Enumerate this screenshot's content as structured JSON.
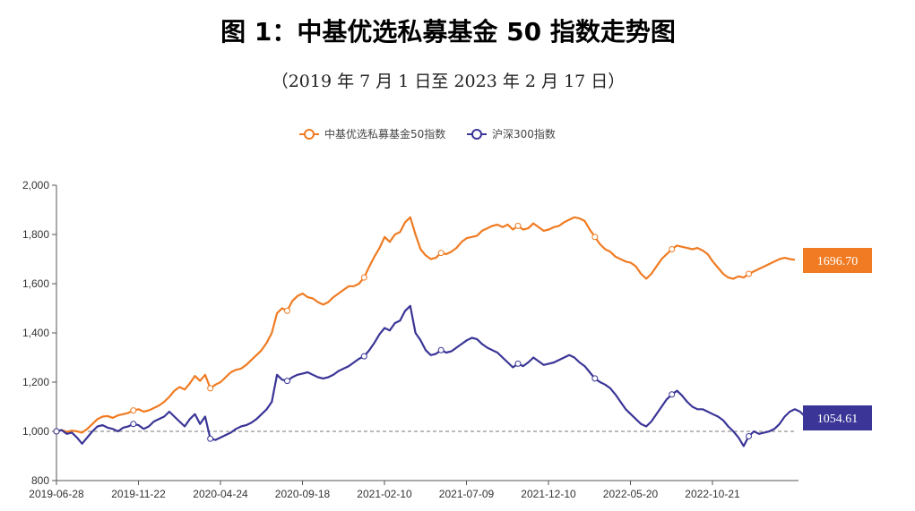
{
  "chart_data": {
    "type": "line",
    "title": "图 1：中基优选私募基金 50 指数走势图",
    "subtitle": "（2019 年 7 月 1 日至 2023 年 2 月 17 日）",
    "x_tick_labels": [
      "2019-06-28",
      "2019-11-22",
      "2020-04-24",
      "2020-09-18",
      "2021-02-10",
      "2021-07-09",
      "2021-12-10",
      "2022-05-20",
      "2022-10-21"
    ],
    "y_ticks": [
      800,
      1000,
      1200,
      1400,
      1600,
      1800,
      2000
    ],
    "y_tick_labels": [
      "800",
      "1,000",
      "1,200",
      "1,400",
      "1,600",
      "1,800",
      "2,000"
    ],
    "ylim": [
      800,
      2000
    ],
    "reference_line": 1000,
    "legend_position": "top-center",
    "colors": {
      "series1": "#f07b22",
      "series2": "#3a3596",
      "reference": "#777777"
    },
    "series": [
      {
        "name": "中基优选私募基金50指数",
        "end_label": "1696.70",
        "values": [
          1000,
          1005,
          998,
          1003,
          1000,
          995,
          1010,
          1030,
          1050,
          1060,
          1062,
          1055,
          1065,
          1070,
          1075,
          1085,
          1090,
          1080,
          1085,
          1095,
          1105,
          1120,
          1140,
          1165,
          1180,
          1170,
          1195,
          1225,
          1205,
          1230,
          1175,
          1190,
          1200,
          1220,
          1240,
          1250,
          1255,
          1270,
          1290,
          1310,
          1330,
          1360,
          1400,
          1480,
          1500,
          1490,
          1530,
          1550,
          1560,
          1545,
          1540,
          1525,
          1515,
          1525,
          1545,
          1560,
          1575,
          1590,
          1590,
          1600,
          1625,
          1670,
          1710,
          1745,
          1790,
          1770,
          1800,
          1810,
          1850,
          1870,
          1800,
          1740,
          1715,
          1700,
          1705,
          1725,
          1720,
          1730,
          1745,
          1770,
          1785,
          1790,
          1795,
          1815,
          1825,
          1835,
          1840,
          1830,
          1840,
          1820,
          1835,
          1820,
          1825,
          1845,
          1830,
          1815,
          1820,
          1830,
          1835,
          1850,
          1860,
          1870,
          1865,
          1855,
          1820,
          1790,
          1760,
          1740,
          1730,
          1710,
          1700,
          1690,
          1685,
          1670,
          1640,
          1620,
          1640,
          1670,
          1700,
          1720,
          1740,
          1755,
          1750,
          1745,
          1740,
          1745,
          1735,
          1720,
          1690,
          1665,
          1640,
          1625,
          1620,
          1630,
          1625,
          1640,
          1650,
          1660,
          1670,
          1680,
          1690,
          1700,
          1705,
          1700,
          1697
        ]
      },
      {
        "name": "沪深300指数",
        "end_label": "1054.61",
        "values": [
          1000,
          1005,
          990,
          995,
          975,
          950,
          975,
          1000,
          1020,
          1025,
          1015,
          1010,
          1000,
          1015,
          1020,
          1030,
          1025,
          1010,
          1020,
          1040,
          1050,
          1060,
          1080,
          1060,
          1040,
          1020,
          1050,
          1070,
          1030,
          1060,
          970,
          965,
          975,
          985,
          995,
          1010,
          1020,
          1025,
          1035,
          1050,
          1070,
          1090,
          1120,
          1230,
          1210,
          1205,
          1220,
          1230,
          1235,
          1240,
          1230,
          1220,
          1215,
          1220,
          1230,
          1245,
          1255,
          1265,
          1280,
          1295,
          1305,
          1330,
          1360,
          1395,
          1420,
          1410,
          1440,
          1450,
          1490,
          1510,
          1400,
          1370,
          1330,
          1310,
          1315,
          1330,
          1320,
          1325,
          1340,
          1355,
          1370,
          1380,
          1375,
          1355,
          1340,
          1330,
          1320,
          1300,
          1280,
          1260,
          1275,
          1265,
          1280,
          1300,
          1285,
          1270,
          1275,
          1280,
          1290,
          1300,
          1310,
          1300,
          1280,
          1265,
          1240,
          1215,
          1200,
          1190,
          1175,
          1150,
          1120,
          1090,
          1070,
          1050,
          1030,
          1020,
          1040,
          1070,
          1100,
          1130,
          1150,
          1165,
          1145,
          1120,
          1100,
          1090,
          1090,
          1080,
          1070,
          1060,
          1045,
          1020,
          1000,
          975,
          940,
          980,
          1000,
          990,
          995,
          1000,
          1010,
          1030,
          1060,
          1080,
          1090,
          1080,
          1060,
          1054.61
        ]
      }
    ]
  }
}
